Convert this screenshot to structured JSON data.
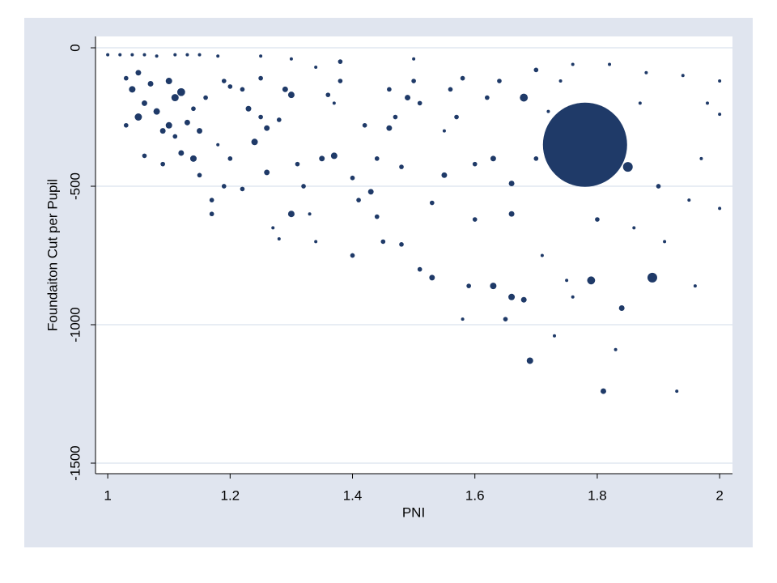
{
  "chart_data": {
    "type": "scatter",
    "x_label": "PNI",
    "y_label": "Foundaiton Cut per Pupil",
    "color": "#1f3a68",
    "grid": true,
    "xlim": [
      0.98,
      2.021
    ],
    "ylim": [
      -1538,
      41
    ],
    "xticks": [
      1,
      1.2,
      1.4,
      1.6,
      1.8,
      2
    ],
    "yticks": [
      0,
      -500,
      -1000,
      -1500
    ],
    "x": [
      1.0,
      1.02,
      1.04,
      1.06,
      1.08,
      1.11,
      1.13,
      1.15,
      1.18,
      1.25,
      1.3,
      1.38,
      1.5,
      1.03,
      1.05,
      1.04,
      1.06,
      1.05,
      1.03,
      1.07,
      1.08,
      1.09,
      1.1,
      1.11,
      1.12,
      1.1,
      1.12,
      1.14,
      1.11,
      1.13,
      1.15,
      1.06,
      1.09,
      1.14,
      1.16,
      1.15,
      1.17,
      1.17,
      1.19,
      1.2,
      1.22,
      1.23,
      1.24,
      1.26,
      1.26,
      1.28,
      1.25,
      1.2,
      1.22,
      1.27,
      1.28,
      1.29,
      1.3,
      1.3,
      1.31,
      1.32,
      1.33,
      1.34,
      1.35,
      1.37,
      1.37,
      1.4,
      1.4,
      1.41,
      1.43,
      1.44,
      1.44,
      1.45,
      1.46,
      1.47,
      1.48,
      1.48,
      1.49,
      1.5,
      1.51,
      1.51,
      1.53,
      1.53,
      1.55,
      1.56,
      1.57,
      1.58,
      1.59,
      1.6,
      1.6,
      1.62,
      1.63,
      1.63,
      1.64,
      1.65,
      1.66,
      1.66,
      1.66,
      1.68,
      1.68,
      1.69,
      1.7,
      1.7,
      1.71,
      1.73,
      1.75,
      1.76,
      1.78,
      1.79,
      1.8,
      1.81,
      1.83,
      1.84,
      1.85,
      1.86,
      1.89,
      1.9,
      1.91,
      1.93,
      1.94,
      1.95,
      1.96,
      1.97,
      1.98,
      2.0,
      2.0,
      2.0,
      1.87,
      1.88,
      1.82,
      1.76,
      1.74,
      1.72,
      1.58,
      1.42,
      1.38,
      1.34,
      1.25,
      1.19,
      1.18,
      1.36,
      1.55,
      1.46
    ],
    "values": [
      -25,
      -25,
      -25,
      -25,
      -30,
      -25,
      -25,
      -25,
      -30,
      -30,
      -40,
      -50,
      -40,
      -110,
      -90,
      -150,
      -200,
      -250,
      -280,
      -130,
      -230,
      -300,
      -120,
      -180,
      -160,
      -280,
      -380,
      -400,
      -320,
      -270,
      -300,
      -390,
      -420,
      -220,
      -180,
      -460,
      -550,
      -600,
      -500,
      -140,
      -150,
      -220,
      -340,
      -290,
      -450,
      -260,
      -250,
      -400,
      -510,
      -650,
      -690,
      -150,
      -170,
      -600,
      -420,
      -500,
      -600,
      -700,
      -400,
      -390,
      -200,
      -470,
      -750,
      -550,
      -520,
      -400,
      -610,
      -700,
      -290,
      -250,
      -430,
      -710,
      -180,
      -120,
      -200,
      -800,
      -830,
      -560,
      -460,
      -150,
      -250,
      -980,
      -860,
      -420,
      -620,
      -180,
      -400,
      -860,
      -120,
      -980,
      -490,
      -900,
      -600,
      -910,
      -180,
      -1130,
      -80,
      -400,
      -750,
      -1040,
      -840,
      -900,
      -350,
      -840,
      -620,
      -1240,
      -1090,
      -940,
      -430,
      -650,
      -830,
      -500,
      -700,
      -1240,
      -100,
      -550,
      -860,
      -400,
      -200,
      -120,
      -580,
      -240,
      -200,
      -90,
      -60,
      -60,
      -120,
      -230,
      -110,
      -280,
      -120,
      -70,
      -110,
      -120,
      -350,
      -170,
      -300,
      -150
    ],
    "sizes": [
      1,
      1,
      1,
      1,
      1,
      1,
      1,
      1,
      1,
      1,
      1,
      2,
      1,
      2,
      3,
      4,
      3,
      5,
      2,
      3,
      4,
      3,
      4,
      5,
      6,
      4,
      3,
      4,
      2,
      3,
      3,
      2,
      2,
      2,
      2,
      2,
      2,
      2,
      2,
      2,
      2,
      3,
      4,
      3,
      3,
      2,
      2,
      2,
      2,
      1,
      1,
      3,
      4,
      4,
      2,
      2,
      1,
      1,
      3,
      4,
      1,
      2,
      2,
      2,
      3,
      2,
      2,
      2,
      3,
      2,
      2,
      2,
      3,
      2,
      2,
      2,
      3,
      2,
      3,
      2,
      2,
      1,
      2,
      2,
      2,
      2,
      3,
      4,
      2,
      2,
      3,
      4,
      3,
      3,
      6,
      4,
      2,
      2,
      1,
      1,
      1,
      1,
      676,
      6,
      2,
      3,
      1,
      3,
      9,
      1,
      9,
      2,
      1,
      1,
      1,
      1,
      1,
      1,
      1,
      1,
      1,
      1,
      1,
      1,
      1,
      1,
      1,
      1,
      2,
      2,
      2,
      1,
      2,
      2,
      1,
      2,
      1,
      2
    ]
  }
}
